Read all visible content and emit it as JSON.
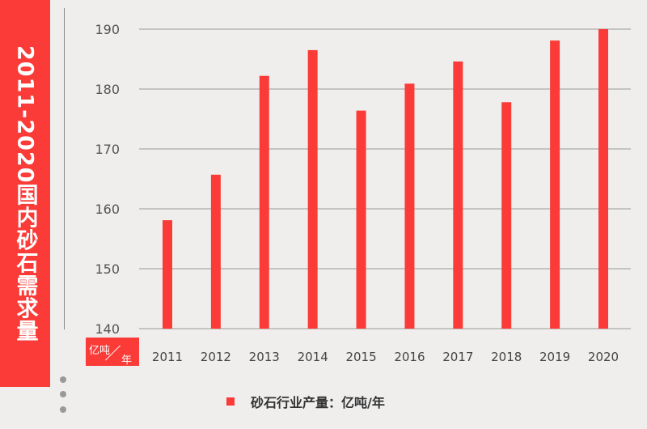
{
  "side_title": "2011-2020国内砂石需求量",
  "unit_label": {
    "top": "亿吨",
    "bottom": "年"
  },
  "chart_data": {
    "type": "bar",
    "categories": [
      "2011",
      "2012",
      "2013",
      "2014",
      "2015",
      "2016",
      "2017",
      "2018",
      "2019",
      "2020"
    ],
    "series": [
      {
        "name": "砂石行业产量：亿吨/年",
        "values": [
          158.1,
          165.7,
          182.2,
          186.5,
          176.4,
          180.9,
          184.6,
          177.8,
          188.1,
          190.0
        ]
      }
    ],
    "ylim": [
      140,
      190
    ],
    "yticks": [
      140,
      150,
      160,
      170,
      180,
      190
    ],
    "grid": true,
    "legend": "bottom",
    "color": "#fa3b38"
  }
}
